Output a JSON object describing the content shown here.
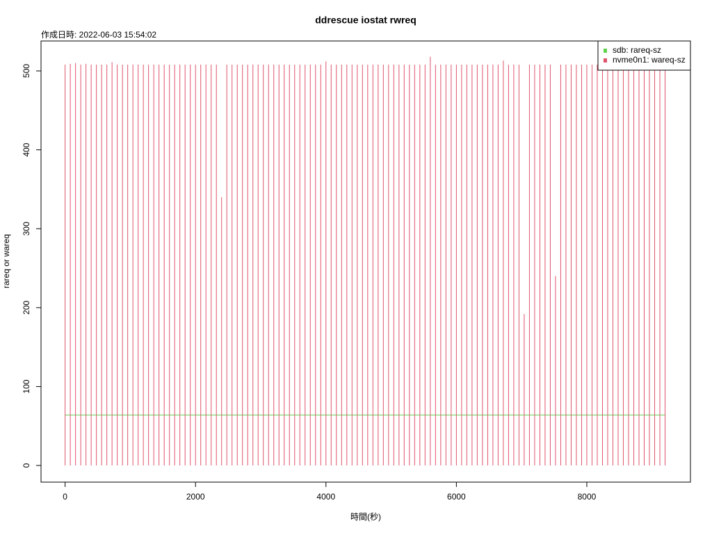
{
  "chart_data": {
    "type": "line",
    "title": "ddrescue iostat rwreq",
    "subtitle": "作成日時: 2022-06-03 15:54:02",
    "x_label": "時間(秒)",
    "y_label": "rareq or wareq",
    "xlim": [
      -369,
      9589
    ],
    "ylim": [
      -21.1,
      537.9
    ],
    "xticks": [
      0,
      2000,
      4000,
      6000,
      8000
    ],
    "yticks": [
      0,
      100,
      200,
      300,
      400,
      500
    ],
    "legend": "top-right",
    "x": [
      0,
      80,
      160,
      240,
      320,
      400,
      480,
      560,
      640,
      720,
      800,
      880,
      960,
      1040,
      1120,
      1200,
      1280,
      1360,
      1440,
      1520,
      1600,
      1680,
      1760,
      1840,
      1920,
      2000,
      2080,
      2160,
      2240,
      2320,
      2400,
      2480,
      2560,
      2640,
      2720,
      2800,
      2880,
      2960,
      3040,
      3120,
      3200,
      3280,
      3360,
      3440,
      3520,
      3600,
      3680,
      3760,
      3840,
      3920,
      4000,
      4080,
      4160,
      4240,
      4320,
      4400,
      4480,
      4560,
      4640,
      4720,
      4800,
      4880,
      4960,
      5040,
      5120,
      5200,
      5280,
      5360,
      5440,
      5520,
      5600,
      5680,
      5760,
      5840,
      5920,
      6000,
      6080,
      6160,
      6240,
      6320,
      6400,
      6480,
      6560,
      6640,
      6720,
      6800,
      6880,
      6960,
      7040,
      7120,
      7200,
      7280,
      7360,
      7440,
      7520,
      7600,
      7680,
      7760,
      7840,
      7920,
      8000,
      8080,
      8160,
      8240,
      8320,
      8400,
      8480,
      8560,
      8640,
      8720,
      8800,
      8880,
      8960,
      9040,
      9120,
      9200
    ],
    "series": [
      {
        "name": "sdb: rareq-sz",
        "color": "#61d04f",
        "style": "l",
        "values": [
          64,
          64,
          64,
          64,
          64,
          64,
          64,
          64,
          64,
          64,
          64,
          64,
          64,
          64,
          64,
          64,
          64,
          64,
          64,
          64,
          64,
          64,
          64,
          64,
          64,
          64,
          64,
          64,
          64,
          64,
          64,
          64,
          64,
          64,
          64,
          64,
          64,
          64,
          64,
          64,
          64,
          64,
          64,
          64,
          64,
          64,
          64,
          64,
          64,
          64,
          64,
          64,
          64,
          64,
          64,
          64,
          64,
          64,
          64,
          64,
          64,
          64,
          64,
          64,
          64,
          64,
          64,
          64,
          64,
          64,
          64,
          64,
          64,
          64,
          64,
          64,
          64,
          64,
          64,
          64,
          64,
          64,
          64,
          64,
          64,
          64,
          64,
          64,
          64,
          64,
          64,
          64,
          64,
          64,
          64,
          64,
          64,
          64,
          64,
          64,
          64,
          64,
          64,
          64,
          64,
          64,
          64,
          64,
          64,
          64,
          64,
          64,
          64,
          64,
          64,
          64
        ]
      },
      {
        "name": "nvme0n1: wareq-sz",
        "color": "#df536b",
        "style": "h",
        "values": [
          508,
          509,
          510,
          508,
          509,
          508,
          508,
          508,
          508,
          511,
          508,
          508,
          508,
          508,
          508,
          508,
          508,
          508,
          508,
          508,
          508,
          508,
          508,
          508,
          508,
          508,
          508,
          508,
          508,
          508,
          340,
          508,
          508,
          508,
          508,
          508,
          508,
          508,
          508,
          508,
          508,
          508,
          508,
          508,
          508,
          508,
          508,
          508,
          508,
          508,
          512,
          508,
          508,
          508,
          508,
          508,
          508,
          508,
          508,
          508,
          508,
          508,
          508,
          508,
          508,
          508,
          508,
          508,
          508,
          508,
          518,
          508,
          508,
          508,
          508,
          508,
          508,
          508,
          508,
          508,
          508,
          508,
          508,
          508,
          513,
          508,
          508,
          508,
          192,
          508,
          508,
          508,
          508,
          508,
          240,
          508,
          508,
          508,
          508,
          508,
          508,
          508,
          508,
          508,
          508,
          508,
          508,
          508,
          508,
          508,
          508,
          508,
          508,
          508,
          508,
          508
        ]
      }
    ]
  }
}
